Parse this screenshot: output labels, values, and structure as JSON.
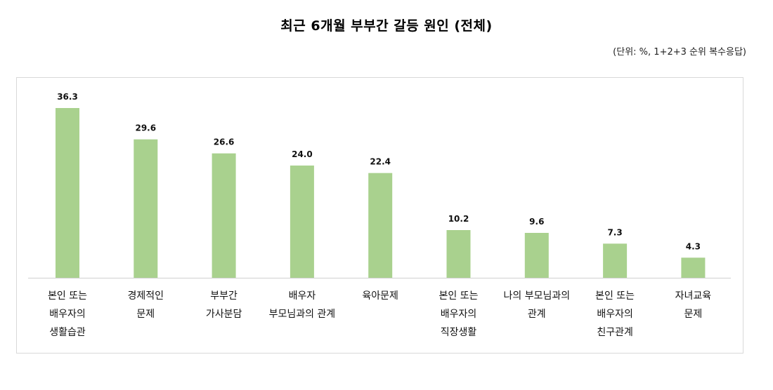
{
  "chart_data": {
    "type": "bar",
    "title": "최근 6개월 부부간 갈등 원인 (전체)",
    "subtitle": "(단위: %, 1+2+3 순위 복수응답)",
    "xlabel": "",
    "ylabel": "",
    "ylim": [
      0,
      40
    ],
    "grid": false,
    "legend": "none",
    "bar_color": "#a9d18e",
    "categories": [
      [
        "본인 또는",
        "배우자의",
        "생활습관"
      ],
      [
        "경제적인",
        "문제"
      ],
      [
        "부부간",
        "가사분담"
      ],
      [
        "배우자",
        "부모님과의 관계"
      ],
      [
        "육아문제"
      ],
      [
        "본인 또는",
        "배우자의",
        "직장생활"
      ],
      [
        "나의 부모님과의",
        "관계"
      ],
      [
        "본인 또는",
        "배우자의",
        "친구관계"
      ],
      [
        "자녀교육",
        "문제"
      ]
    ],
    "values": [
      36.3,
      29.6,
      26.6,
      24.0,
      22.4,
      10.2,
      9.6,
      7.3,
      4.3
    ],
    "value_labels": [
      "36.3",
      "29.6",
      "26.6",
      "24.0",
      "22.4",
      "10.2",
      "9.6",
      "7.3",
      "4.3"
    ]
  }
}
